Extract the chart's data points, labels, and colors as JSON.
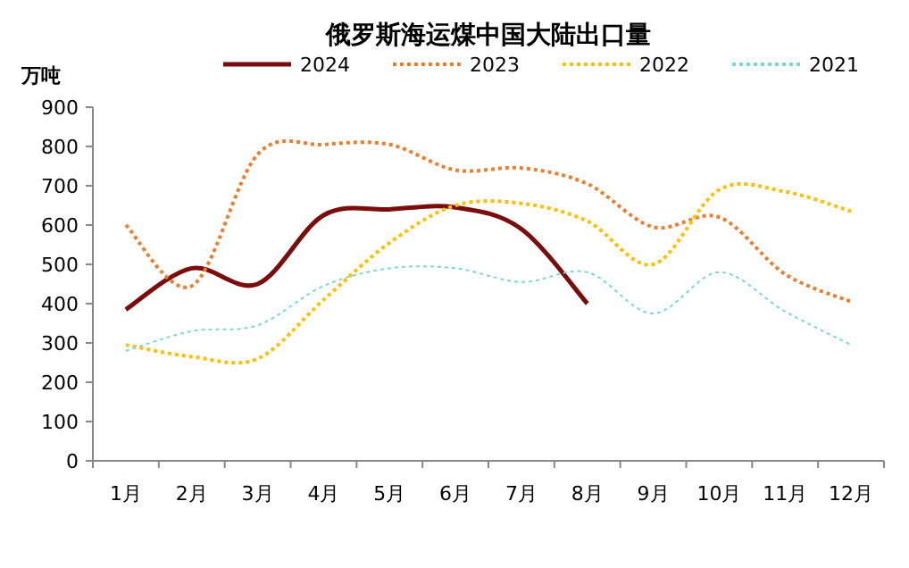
{
  "chart_data": {
    "type": "line",
    "title": "俄罗斯海运煤中国大陆出口量",
    "ylabel": "万吨",
    "categories": [
      "1月",
      "2月",
      "3月",
      "4月",
      "5月",
      "6月",
      "7月",
      "8月",
      "9月",
      "10月",
      "11月",
      "12月"
    ],
    "ylim": [
      0,
      900
    ],
    "yticks": [
      0,
      100,
      200,
      300,
      400,
      500,
      600,
      700,
      800,
      900
    ],
    "grid": false,
    "legend": "top",
    "marker": "none",
    "series": [
      {
        "name": "2024",
        "color": "#7b0c0c",
        "line_style": "solid",
        "values": [
          385,
          490,
          450,
          625,
          640,
          645,
          590,
          400,
          null,
          null,
          null,
          null
        ]
      },
      {
        "name": "2023",
        "color": "#ed7d31",
        "line_style": "dotted",
        "values": [
          600,
          445,
          780,
          805,
          805,
          740,
          745,
          705,
          595,
          620,
          475,
          405
        ]
      },
      {
        "name": "2022",
        "color": "#ffc000",
        "line_style": "dotted",
        "values": [
          295,
          265,
          260,
          410,
          555,
          650,
          655,
          610,
          500,
          690,
          685,
          635
        ]
      },
      {
        "name": "2021",
        "color": "#7fd8d0",
        "line_style": "dotted",
        "values": [
          280,
          330,
          345,
          445,
          490,
          490,
          455,
          480,
          375,
          480,
          380,
          295
        ]
      }
    ]
  }
}
